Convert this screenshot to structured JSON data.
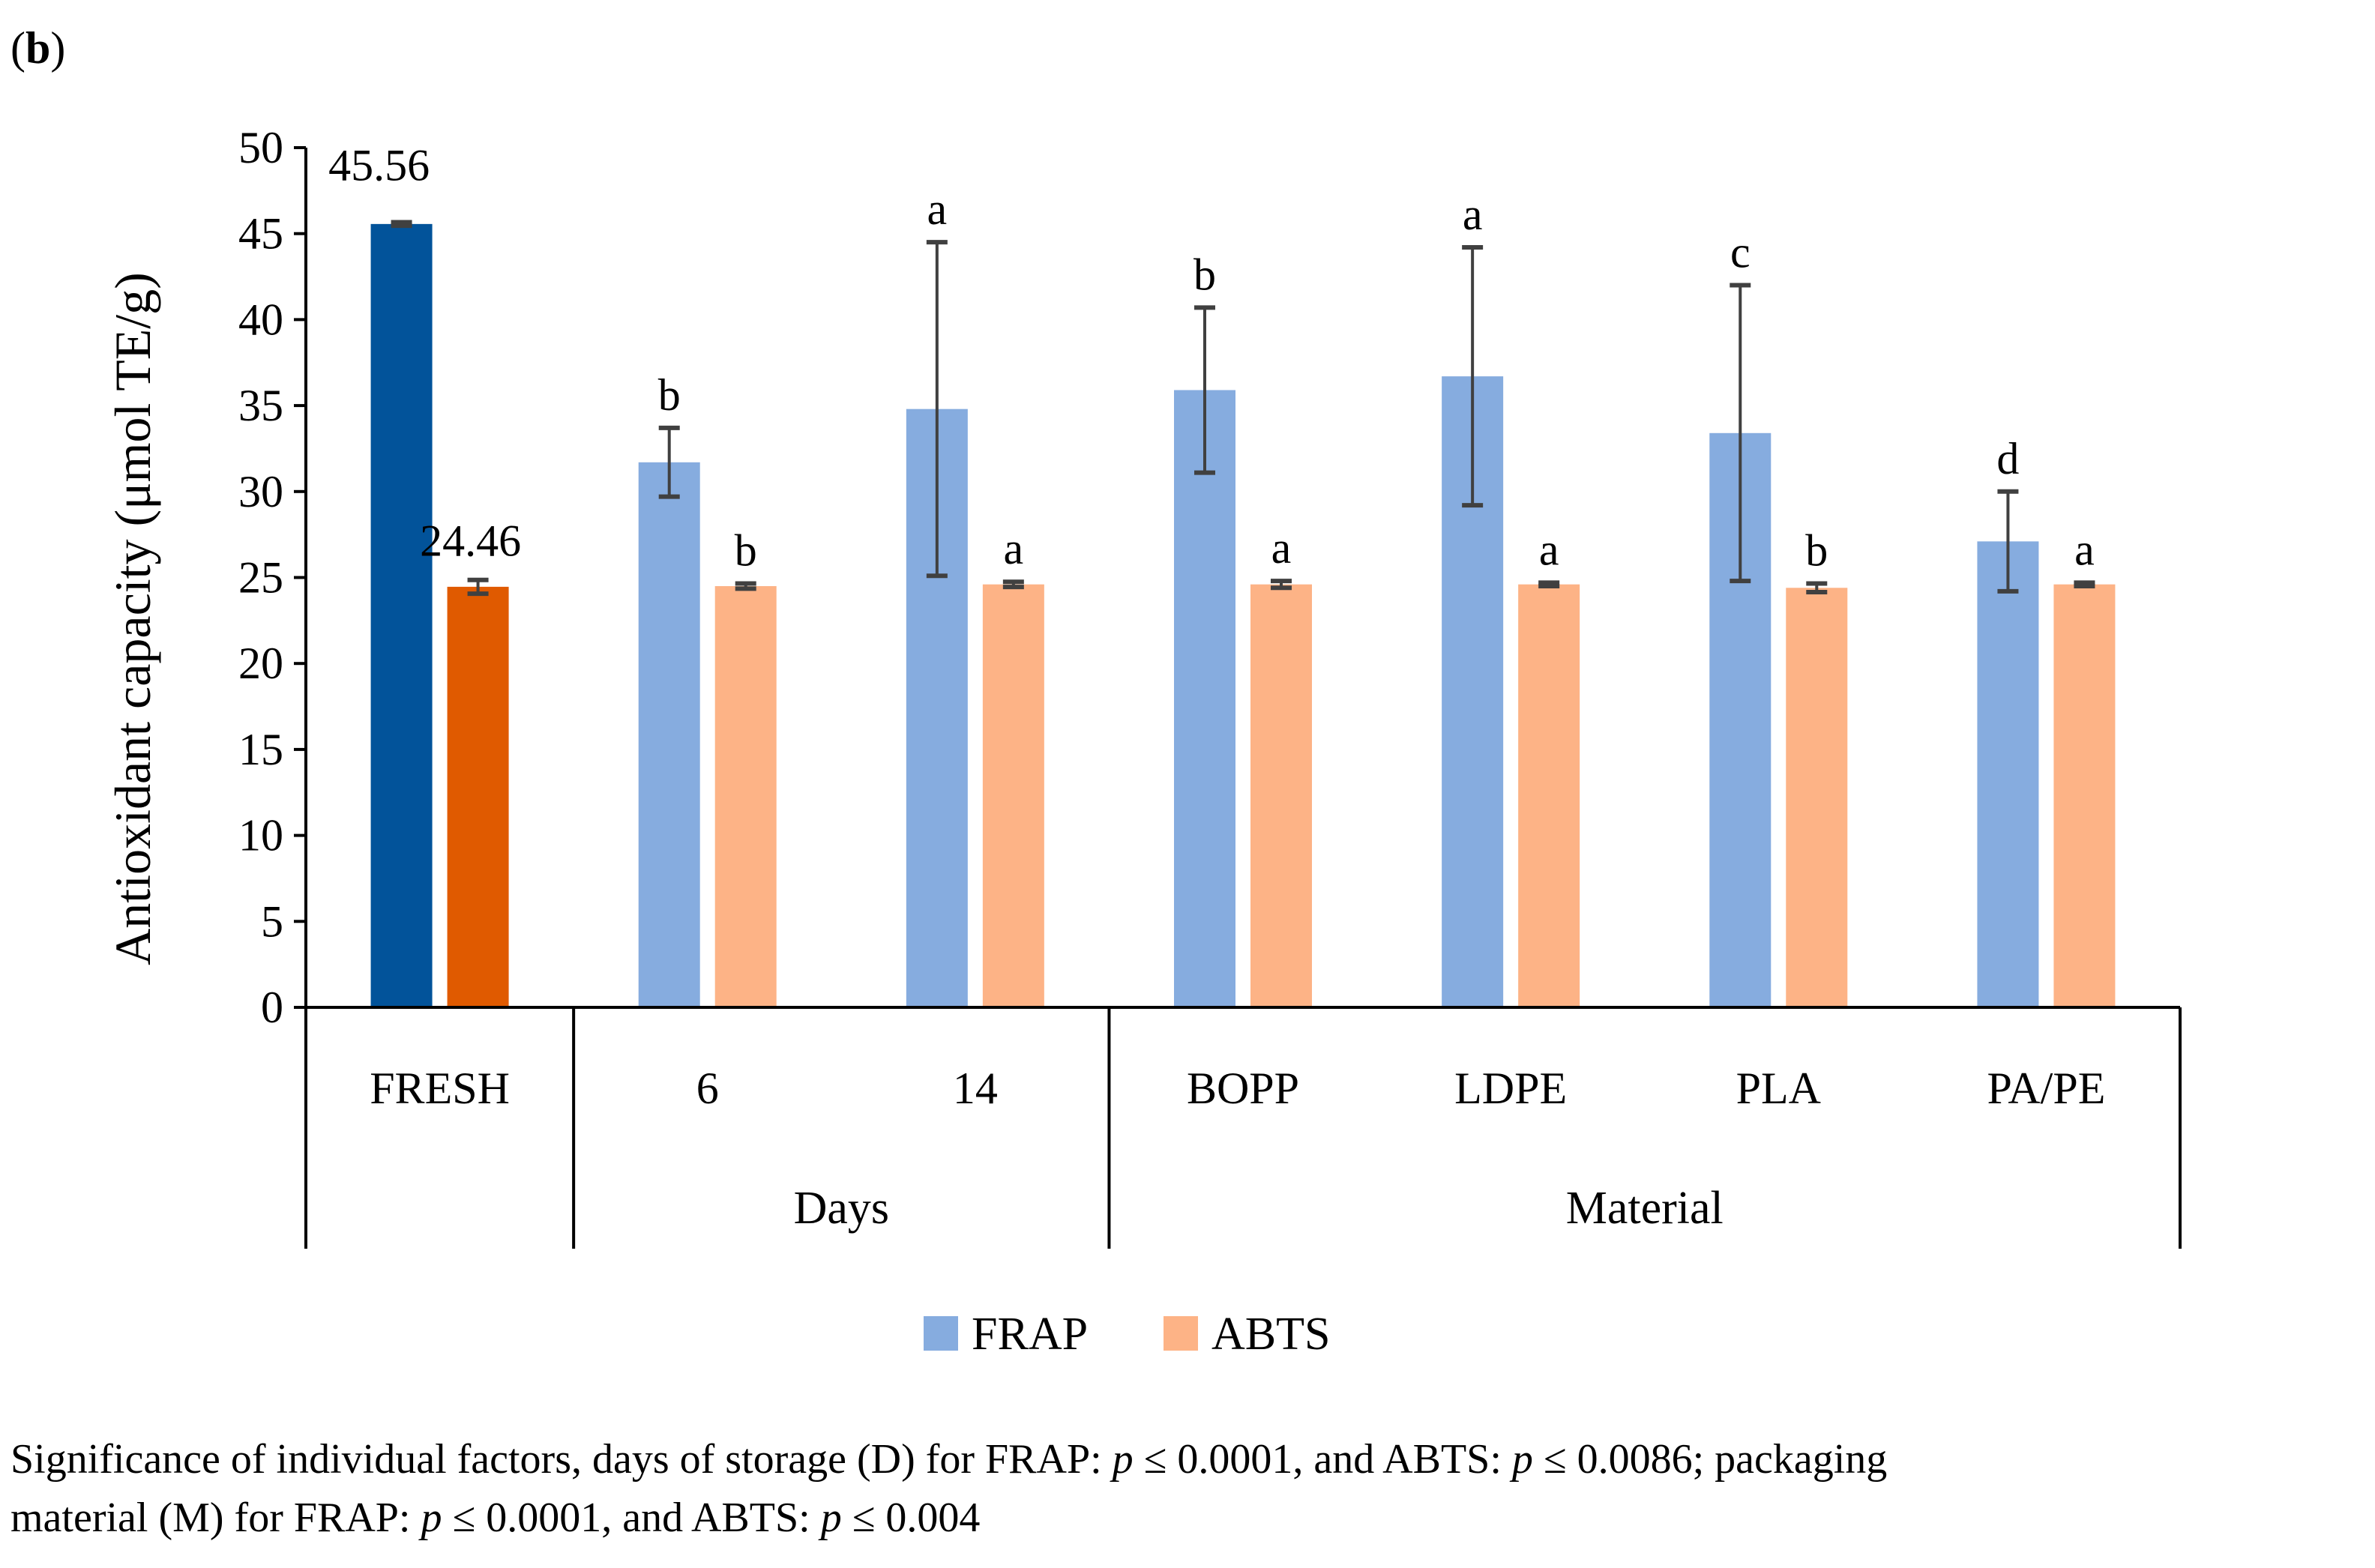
{
  "panel_label": "b",
  "chart_data": {
    "type": "bar",
    "ylabel": "Antioxidant capacity (μmol TE/g)",
    "ylim": [
      0,
      50
    ],
    "yticks": [
      0,
      5,
      10,
      15,
      20,
      25,
      30,
      35,
      40,
      45,
      50
    ],
    "categories": [
      "FRESH",
      "6",
      "14",
      "BOPP",
      "LDPE",
      "PLA",
      "PA/PE"
    ],
    "groups": [
      {
        "label": "",
        "categories": [
          "FRESH"
        ]
      },
      {
        "label": "Days",
        "categories": [
          "6",
          "14"
        ]
      },
      {
        "label": "Material",
        "categories": [
          "BOPP",
          "LDPE",
          "PLA",
          "PA/PE"
        ]
      }
    ],
    "series": [
      {
        "name": "FRAP",
        "color": "#86ACDF",
        "fresh_color": "#02539A",
        "values": [
          45.56,
          31.7,
          34.8,
          35.9,
          36.7,
          33.4,
          27.1
        ],
        "error": [
          0.1,
          2.0,
          9.7,
          4.8,
          7.5,
          8.6,
          2.9
        ],
        "letters": [
          "",
          "b",
          "a",
          "b",
          "a",
          "c",
          "d"
        ],
        "value_labels": [
          "45.56",
          "",
          "",
          "",
          "",
          "",
          ""
        ]
      },
      {
        "name": "ABTS",
        "color": "#FDB386",
        "fresh_color": "#E05A00",
        "values": [
          24.46,
          24.5,
          24.6,
          24.6,
          24.6,
          24.4,
          24.6
        ],
        "error": [
          0.4,
          0.15,
          0.15,
          0.2,
          0.1,
          0.25,
          0.1
        ],
        "letters": [
          "",
          "b",
          "a",
          "a",
          "a",
          "b",
          "a"
        ],
        "value_labels": [
          "24.46",
          "",
          "",
          "",
          "",
          "",
          ""
        ]
      }
    ],
    "legend": [
      "FRAP",
      "ABTS"
    ],
    "legend_position": "bottom"
  },
  "caption": {
    "line1_a": "Significance of individual factors, days of storage (D) for FRAP: ",
    "p1": "p",
    "line1_b": " ≤ 0.0001, and ABTS: ",
    "p2": "p",
    "line1_c": " ≤ 0.0086; packaging",
    "line2_a": "material (M) for FRAP: ",
    "p3": "p",
    "line2_b": " ≤ 0.0001, and ABTS: ",
    "p4": "p",
    "line2_c": " ≤ 0.004"
  }
}
